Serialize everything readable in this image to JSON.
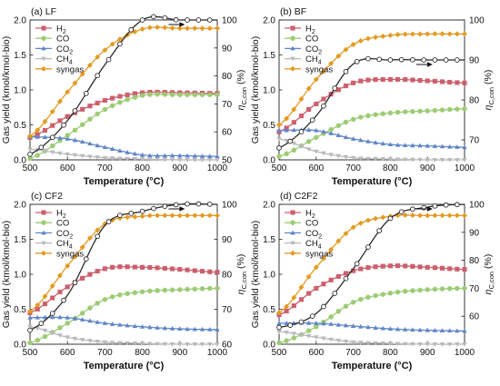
{
  "figure": {
    "xlabel": "Temperature (°C)",
    "ylabel_left": "Gas yield (kmol/kmol-bio)",
    "ylabel_right": "ηC,con (%)"
  },
  "series_styles": [
    {
      "name": "H2",
      "display": "H",
      "sub": "2",
      "color": "#cc5f6d",
      "marker": "square"
    },
    {
      "name": "CO",
      "display": "CO",
      "sub": "",
      "color": "#9ccc74",
      "marker": "circle"
    },
    {
      "name": "CO2",
      "display": "CO",
      "sub": "2",
      "color": "#5f86c7",
      "marker": "triangle"
    },
    {
      "name": "CH4",
      "display": "CH",
      "sub": "4",
      "color": "#b9b9bf",
      "marker": "triangle-down"
    },
    {
      "name": "syngas",
      "display": "syngas",
      "sub": "",
      "color": "#e39a22",
      "marker": "diamond"
    },
    {
      "name": "carbon conversion",
      "display": "",
      "sub": "",
      "color": "#2a2a2a",
      "marker": "open-circle",
      "axis": "right"
    }
  ],
  "chart_data": [
    {
      "type": "line",
      "panel_title": "(a) LF",
      "x": [
        500,
        600,
        700,
        800,
        900,
        1000
      ],
      "xlim": [
        500,
        1000
      ],
      "xticks": [
        500,
        600,
        700,
        800,
        900,
        1000
      ],
      "ylim_left": [
        0.0,
        2.0
      ],
      "yticks_left": [
        "0.0",
        "0.5",
        "1.0",
        "1.5",
        "2.0"
      ],
      "ylim_right": [
        50,
        100
      ],
      "yticks_right": [
        50,
        60,
        70,
        80,
        90,
        100
      ],
      "legend_position": "top-left",
      "arrow": "right",
      "series": [
        {
          "name": "H2",
          "axis": "left",
          "values": [
            0.32,
            0.62,
            0.85,
            0.96,
            0.96,
            0.95
          ]
        },
        {
          "name": "CO",
          "axis": "left",
          "values": [
            0.02,
            0.35,
            0.72,
            0.92,
            0.93,
            0.93
          ]
        },
        {
          "name": "CO2",
          "axis": "left",
          "values": [
            0.33,
            0.3,
            0.18,
            0.07,
            0.06,
            0.05
          ]
        },
        {
          "name": "CH4",
          "axis": "left",
          "values": [
            0.15,
            0.08,
            0.03,
            0.01,
            0.0,
            0.0
          ]
        },
        {
          "name": "syngas",
          "axis": "left",
          "values": [
            0.34,
            0.97,
            1.57,
            1.87,
            1.88,
            1.88
          ]
        },
        {
          "name": "carbon conversion",
          "axis": "right",
          "values": [
            52,
            64,
            84,
            100,
            100,
            100
          ]
        }
      ]
    },
    {
      "type": "line",
      "panel_title": "(b) BF",
      "x": [
        500,
        600,
        700,
        800,
        900,
        1000
      ],
      "xlim": [
        500,
        1000
      ],
      "xticks": [
        500,
        600,
        700,
        800,
        900,
        1000
      ],
      "ylim_left": [
        0.0,
        2.0
      ],
      "yticks_left": [
        "0.0",
        "0.5",
        "1.0",
        "1.5",
        "2.0"
      ],
      "ylim_right": [
        65,
        100
      ],
      "yticks_right": [
        70,
        80,
        90,
        100
      ],
      "legend_position": "top-left",
      "arrow": "right",
      "series": [
        {
          "name": "H2",
          "axis": "left",
          "values": [
            0.4,
            0.8,
            1.1,
            1.15,
            1.13,
            1.1
          ]
        },
        {
          "name": "CO",
          "axis": "left",
          "values": [
            0.05,
            0.32,
            0.58,
            0.67,
            0.7,
            0.73
          ]
        },
        {
          "name": "CO2",
          "axis": "left",
          "values": [
            0.42,
            0.42,
            0.3,
            0.22,
            0.2,
            0.18
          ]
        },
        {
          "name": "CH4",
          "axis": "left",
          "values": [
            0.3,
            0.12,
            0.03,
            0.01,
            0.0,
            0.0
          ]
        },
        {
          "name": "syngas",
          "axis": "left",
          "values": [
            0.5,
            1.15,
            1.65,
            1.78,
            1.8,
            1.8
          ]
        },
        {
          "name": "carbon conversion",
          "axis": "right",
          "values": [
            68,
            76,
            89,
            90,
            90,
            90
          ]
        }
      ]
    },
    {
      "type": "line",
      "panel_title": "(c) CF2",
      "x": [
        500,
        600,
        700,
        800,
        900,
        1000
      ],
      "xlim": [
        500,
        1000
      ],
      "xticks": [
        500,
        600,
        700,
        800,
        900,
        1000
      ],
      "ylim_left": [
        0.0,
        2.0
      ],
      "yticks_left": [
        "0.0",
        "0.5",
        "1.0",
        "1.5",
        "2.0"
      ],
      "ylim_right": [
        60,
        100
      ],
      "yticks_right": [
        60,
        70,
        80,
        90,
        100
      ],
      "legend_position": "top-left",
      "arrow": "right",
      "series": [
        {
          "name": "H2",
          "axis": "left",
          "values": [
            0.45,
            0.82,
            1.08,
            1.1,
            1.07,
            1.03
          ]
        },
        {
          "name": "CO",
          "axis": "left",
          "values": [
            0.02,
            0.3,
            0.64,
            0.75,
            0.78,
            0.8
          ]
        },
        {
          "name": "CO2",
          "axis": "left",
          "values": [
            0.38,
            0.38,
            0.3,
            0.25,
            0.22,
            0.21
          ]
        },
        {
          "name": "CH4",
          "axis": "left",
          "values": [
            0.25,
            0.1,
            0.03,
            0.01,
            0.0,
            0.0
          ]
        },
        {
          "name": "syngas",
          "axis": "left",
          "values": [
            0.47,
            1.12,
            1.72,
            1.83,
            1.84,
            1.84
          ]
        },
        {
          "name": "carbon conversion",
          "axis": "right",
          "values": [
            64,
            74,
            94,
            98,
            100,
            100
          ]
        }
      ]
    },
    {
      "type": "line",
      "panel_title": "(d) C2F2",
      "x": [
        500,
        600,
        700,
        800,
        900,
        1000
      ],
      "xlim": [
        500,
        1000
      ],
      "xticks": [
        500,
        600,
        700,
        800,
        900,
        1000
      ],
      "ylim_left": [
        0.0,
        2.0
      ],
      "yticks_left": [
        "0.0",
        "0.5",
        "1.0",
        "1.5",
        "2.0"
      ],
      "ylim_right": [
        50,
        100
      ],
      "yticks_right": [
        60,
        70,
        80,
        90,
        100
      ],
      "legend_position": "top-left",
      "arrow": "right",
      "series": [
        {
          "name": "H2",
          "axis": "left",
          "values": [
            0.42,
            0.8,
            1.05,
            1.12,
            1.1,
            1.07
          ]
        },
        {
          "name": "CO",
          "axis": "left",
          "values": [
            0.02,
            0.25,
            0.6,
            0.73,
            0.78,
            0.8
          ]
        },
        {
          "name": "CO2",
          "axis": "left",
          "values": [
            0.3,
            0.3,
            0.26,
            0.22,
            0.2,
            0.19
          ]
        },
        {
          "name": "CH4",
          "axis": "left",
          "values": [
            0.18,
            0.1,
            0.03,
            0.01,
            0.0,
            0.0
          ]
        },
        {
          "name": "syngas",
          "axis": "left",
          "values": [
            0.45,
            1.1,
            1.67,
            1.83,
            1.84,
            1.84
          ]
        },
        {
          "name": "carbon conversion",
          "axis": "right",
          "values": [
            56,
            61,
            77,
            95,
            99,
            100
          ]
        }
      ]
    }
  ]
}
